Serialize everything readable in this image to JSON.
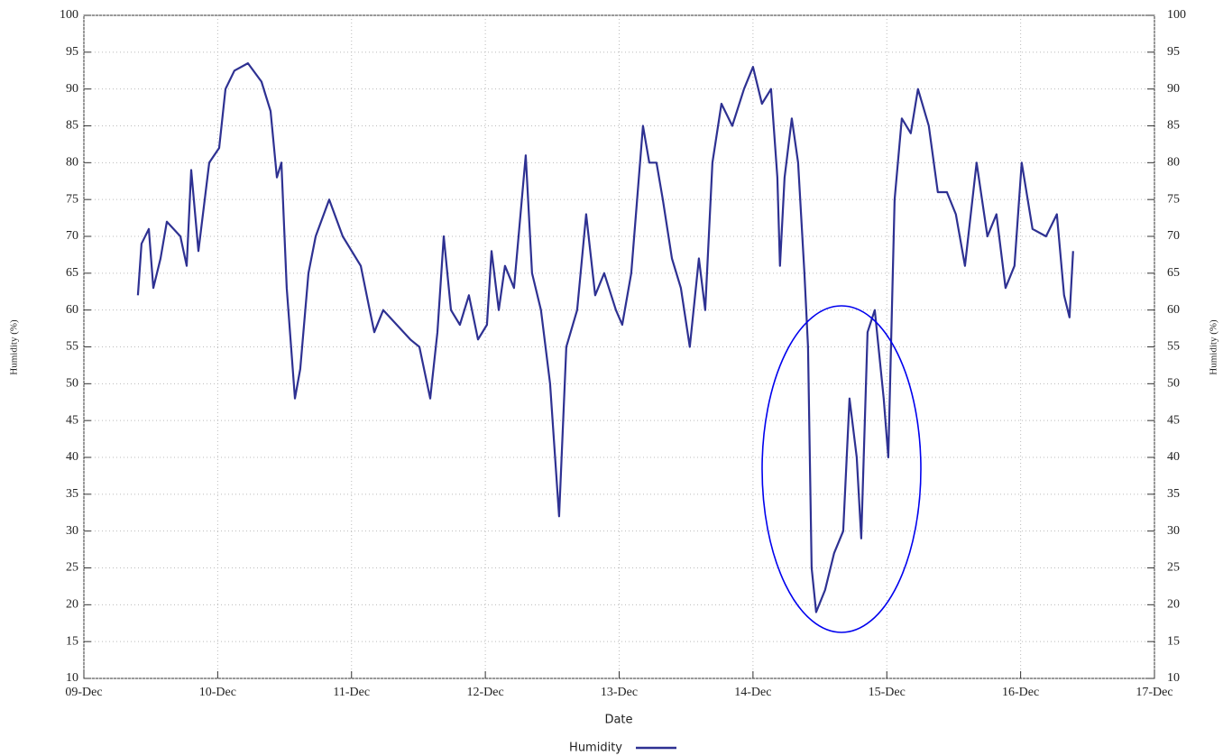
{
  "chart_data": {
    "type": "line",
    "xlabel": "Date",
    "ylabel": "Humidity (%)",
    "y2label": "Humidity (%)",
    "xlim": [
      9,
      17
    ],
    "xticks": [
      {
        "value": 9,
        "label": "09-Dec"
      },
      {
        "value": 10,
        "label": "10-Dec"
      },
      {
        "value": 11,
        "label": "11-Dec"
      },
      {
        "value": 12,
        "label": "12-Dec"
      },
      {
        "value": 13,
        "label": "13-Dec"
      },
      {
        "value": 14,
        "label": "14-Dec"
      },
      {
        "value": 15,
        "label": "15-Dec"
      },
      {
        "value": 16,
        "label": "16-Dec"
      },
      {
        "value": 17,
        "label": "17-Dec"
      }
    ],
    "ylim": [
      10,
      100
    ],
    "yticks": [
      10,
      15,
      20,
      25,
      30,
      35,
      40,
      45,
      50,
      55,
      60,
      65,
      70,
      75,
      80,
      85,
      90,
      95,
      100
    ],
    "y2lim": [
      10,
      100
    ],
    "y2ticks": [
      10,
      15,
      20,
      25,
      30,
      35,
      40,
      45,
      50,
      55,
      60,
      65,
      70,
      75,
      80,
      85,
      90,
      95,
      100
    ],
    "grid": true,
    "legend": "bottom",
    "x": [
      9.404,
      9.431,
      9.485,
      9.519,
      9.573,
      9.62,
      9.721,
      9.768,
      9.802,
      9.856,
      9.937,
      10.011,
      10.058,
      10.125,
      10.226,
      10.327,
      10.395,
      10.442,
      10.476,
      10.516,
      10.577,
      10.617,
      10.678,
      10.732,
      10.833,
      10.934,
      11.069,
      11.136,
      11.17,
      11.237,
      11.338,
      11.439,
      11.507,
      11.588,
      11.642,
      11.689,
      11.743,
      11.81,
      11.877,
      11.945,
      12.012,
      12.046,
      12.1,
      12.147,
      12.214,
      12.302,
      12.349,
      12.416,
      12.484,
      12.551,
      12.605,
      12.686,
      12.753,
      12.821,
      12.888,
      12.976,
      13.023,
      13.09,
      13.178,
      13.225,
      13.279,
      13.326,
      13.394,
      13.461,
      13.528,
      13.596,
      13.643,
      13.697,
      13.764,
      13.845,
      13.933,
      14.0,
      14.067,
      14.135,
      14.182,
      14.202,
      14.236,
      14.29,
      14.337,
      14.384,
      14.411,
      14.438,
      14.472,
      14.539,
      14.606,
      14.674,
      14.721,
      14.775,
      14.809,
      14.856,
      14.91,
      14.977,
      15.011,
      15.058,
      15.112,
      15.179,
      15.233,
      15.314,
      15.381,
      15.449,
      15.516,
      15.584,
      15.671,
      15.752,
      15.819,
      15.887,
      15.954,
      16.008,
      16.089,
      16.19,
      16.271,
      16.325,
      16.365,
      16.392
    ],
    "series": [
      {
        "name": "Humidity",
        "color": "#2e3192",
        "values": [
          62,
          69,
          71,
          63,
          67,
          72,
          70,
          66,
          79,
          68,
          80,
          82,
          90,
          92.5,
          93.5,
          91,
          87,
          78,
          80,
          63,
          48,
          52,
          65,
          70,
          75,
          70,
          66,
          60,
          57,
          60,
          58,
          56,
          55,
          48,
          57,
          70,
          60,
          58,
          62,
          56,
          58,
          68,
          60,
          66,
          63,
          81,
          65,
          60,
          50,
          32,
          55,
          60,
          73,
          62,
          65,
          60,
          58,
          65,
          85,
          80,
          80,
          75,
          67,
          63,
          55,
          67,
          60,
          80,
          88,
          85,
          90,
          93,
          88,
          90,
          78,
          66,
          78,
          86,
          80,
          65,
          55,
          25,
          19,
          22,
          27,
          30,
          48,
          40,
          29,
          57,
          60,
          48,
          40,
          75,
          86,
          84,
          90,
          85,
          76,
          76,
          73,
          66,
          80,
          70,
          73,
          63,
          66,
          80,
          71,
          70,
          73,
          62,
          59,
          68
        ]
      }
    ]
  }
}
